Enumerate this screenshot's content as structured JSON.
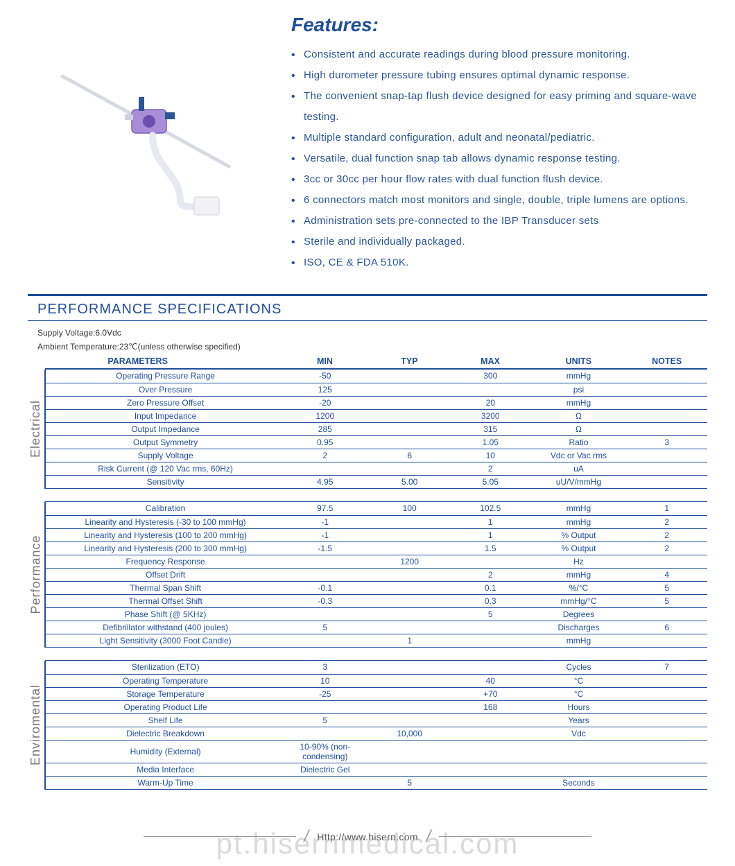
{
  "features": {
    "title": "Features:",
    "items": [
      "Consistent and accurate readings during blood pressure monitoring.",
      "High durometer pressure tubing ensures optimal dynamic response.",
      "The convenient snap-tap flush device designed for easy priming and square-wave testing.",
      "Multiple standard configuration, adult and neonatal/pediatric.",
      "Versatile, dual function snap tab allows dynamic response testing.",
      "3cc or 30cc per hour flow rates with dual function flush device.",
      "6 connectors match most monitors and single, double, triple lumens are options.",
      "Administration sets pre-connected to the IBP Transducer sets",
      "Sterile and individually packaged.",
      "ISO, CE & FDA 510K."
    ]
  },
  "spec_header": {
    "title": "PERFORMANCE SPECIFICATIONS",
    "meta1": "Supply Voltage:6.0Vdc",
    "meta2": "Ambient Temperature:23℃(unless otherwise specified)",
    "columns": [
      "PARAMETERS",
      "MIN",
      "TYP",
      "MAX",
      "UNITS",
      "NOTES"
    ]
  },
  "col_widths": [
    "320px",
    "120px",
    "110px",
    "110px",
    "130px",
    "110px"
  ],
  "groups": [
    {
      "label": "Electrical",
      "rows": [
        {
          "p": "Operating Pressure Range",
          "min": "-50",
          "typ": "",
          "max": "300",
          "units": "mmHg",
          "notes": ""
        },
        {
          "p": "Over  Pressure",
          "min": "125",
          "typ": "",
          "max": "",
          "units": "psi",
          "notes": ""
        },
        {
          "p": "Zero Pressure Offset",
          "min": "-20",
          "typ": "",
          "max": "20",
          "units": "mmHg",
          "notes": ""
        },
        {
          "p": "Input Impedance",
          "min": "1200",
          "typ": "",
          "max": "3200",
          "units": "Ω",
          "notes": ""
        },
        {
          "p": "Output Impedance",
          "min": "285",
          "typ": "",
          "max": "315",
          "units": "Ω",
          "notes": ""
        },
        {
          "p": "Output Symmetry",
          "min": "0.95",
          "typ": "",
          "max": "1.05",
          "units": "Ratio",
          "notes": "3"
        },
        {
          "p": "Supply Voltage",
          "min": "2",
          "typ": "6",
          "max": "10",
          "units": "Vdc or Vac rms",
          "notes": ""
        },
        {
          "p": "Risk Current (@ 120 Vac rms, 60Hz)",
          "min": "",
          "typ": "",
          "max": "2",
          "units": "uA",
          "notes": ""
        },
        {
          "p": "Sensitivity",
          "min": "4.95",
          "typ": "5.00",
          "max": "5.05",
          "units": "uU/V/mmHg",
          "notes": ""
        }
      ]
    },
    {
      "label": "Performance",
      "rows": [
        {
          "p": "Calibration",
          "min": "97.5",
          "typ": "100",
          "max": "102.5",
          "units": "mmHg",
          "notes": "1"
        },
        {
          "p": "Linearity and Hysteresis (-30 to 100 mmHg)",
          "min": "-1",
          "typ": "",
          "max": "1",
          "units": "mmHg",
          "notes": "2"
        },
        {
          "p": "Linearity and Hysteresis (100 to 200 mmHg)",
          "min": "-1",
          "typ": "",
          "max": "1",
          "units": "% Output",
          "notes": "2"
        },
        {
          "p": "Linearity and Hysteresis (200 to 300 mmHg)",
          "min": "-1.5",
          "typ": "",
          "max": "1.5",
          "units": "% Output",
          "notes": "2"
        },
        {
          "p": "Frequency Response",
          "min": "",
          "typ": "1200",
          "max": "",
          "units": "Hz",
          "notes": ""
        },
        {
          "p": "Offset Drift",
          "min": "",
          "typ": "",
          "max": "2",
          "units": "mmHg",
          "notes": "4"
        },
        {
          "p": "Thermal Span Shift",
          "min": "-0.1",
          "typ": "",
          "max": "0.1",
          "units": "%/°C",
          "notes": "5"
        },
        {
          "p": "Thermal Offset Shift",
          "min": "-0.3",
          "typ": "",
          "max": "0.3",
          "units": "mmHg/°C",
          "notes": "5"
        },
        {
          "p": "Phase Shift (@ 5KHz)",
          "min": "",
          "typ": "",
          "max": "5",
          "units": "Degrees",
          "notes": ""
        },
        {
          "p": "Defibrillator withstand (400 joules)",
          "min": "5",
          "typ": "",
          "max": "",
          "units": "Discharges",
          "notes": "6"
        },
        {
          "p": "Light Sensitivity (3000 Foot Candle)",
          "min": "",
          "typ": "1",
          "max": "",
          "units": "mmHg",
          "notes": ""
        }
      ]
    },
    {
      "label": "Enviromental",
      "rows": [
        {
          "p": "Sterilization (ETO)",
          "min": "3",
          "typ": "",
          "max": "",
          "units": "Cycles",
          "notes": "7"
        },
        {
          "p": "Operating Temperature",
          "min": "10",
          "typ": "",
          "max": "40",
          "units": "°C",
          "notes": ""
        },
        {
          "p": "Storage Temperature",
          "min": "-25",
          "typ": "",
          "max": "+70",
          "units": "°C",
          "notes": ""
        },
        {
          "p": "Operating Product Life",
          "min": "",
          "typ": "",
          "max": "168",
          "units": "Hours",
          "notes": ""
        },
        {
          "p": "Shelf Life",
          "min": "5",
          "typ": "",
          "max": "",
          "units": "Years",
          "notes": ""
        },
        {
          "p": "Dielectric Breakdown",
          "min": "",
          "typ": "10,000",
          "max": "",
          "units": "Vdc",
          "notes": ""
        },
        {
          "p": "Humidity (External)",
          "min": "10-90% (non-condensing)",
          "typ": "",
          "max": "",
          "units": "",
          "notes": ""
        },
        {
          "p": "Media Interface",
          "min": "Dielectric Gel",
          "typ": "",
          "max": "",
          "units": "",
          "notes": ""
        },
        {
          "p": "Warm-Up Time",
          "min": "",
          "typ": "5",
          "max": "",
          "units": "Seconds",
          "notes": ""
        }
      ]
    }
  ],
  "footer": {
    "url": "Http://www.hisern.com",
    "watermark": "pt.hisernmedical.com"
  },
  "colors": {
    "brand": "#1f4e9c",
    "group_sep": "#d08040"
  }
}
